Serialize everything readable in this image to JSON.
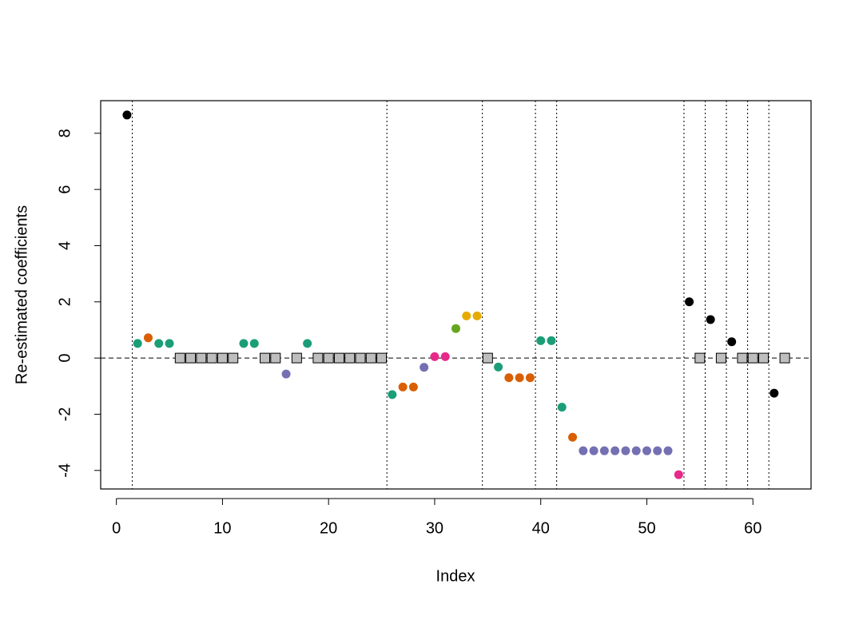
{
  "chart_data": {
    "type": "scatter",
    "xlabel": "Index",
    "ylabel": "Re-estimated coefficients",
    "x": [
      1,
      2,
      3,
      4,
      5,
      6,
      7,
      8,
      9,
      10,
      11,
      12,
      13,
      14,
      15,
      16,
      17,
      18,
      19,
      20,
      21,
      22,
      23,
      24,
      25,
      26,
      27,
      28,
      29,
      30,
      31,
      32,
      33,
      34,
      35,
      36,
      37,
      38,
      39,
      40,
      41,
      42,
      43,
      44,
      45,
      46,
      47,
      48,
      49,
      50,
      51,
      52,
      53,
      54,
      55,
      56,
      57,
      58,
      59,
      60,
      61,
      62,
      63
    ],
    "values": [
      8.65,
      0.52,
      0.72,
      0.52,
      0.52,
      0,
      0,
      0,
      0,
      0,
      0,
      0.52,
      0.52,
      0,
      0,
      -0.57,
      0,
      0.52,
      0,
      0,
      0,
      0,
      0,
      0,
      0,
      -1.3,
      -1.03,
      -1.03,
      -0.33,
      0.05,
      0.05,
      1.05,
      1.5,
      1.5,
      0,
      -0.32,
      -0.7,
      -0.7,
      -0.7,
      0.62,
      0.62,
      -1.75,
      -2.82,
      -3.3,
      -3.3,
      -3.3,
      -3.3,
      -3.3,
      -3.3,
      -3.3,
      -3.3,
      -3.3,
      -4.15,
      2.0,
      0,
      1.37,
      0,
      0.58,
      0,
      0,
      0,
      -1.25,
      0
    ],
    "colors": [
      "#000000",
      "#1b9e77",
      "#d95f02",
      "#1b9e77",
      "#1b9e77",
      "#bebebe",
      "#bebebe",
      "#bebebe",
      "#bebebe",
      "#bebebe",
      "#bebebe",
      "#1b9e77",
      "#1b9e77",
      "#bebebe",
      "#bebebe",
      "#7570b3",
      "#bebebe",
      "#1b9e77",
      "#bebebe",
      "#bebebe",
      "#bebebe",
      "#bebebe",
      "#bebebe",
      "#bebebe",
      "#bebebe",
      "#1b9e77",
      "#d95f02",
      "#d95f02",
      "#7570b3",
      "#e7298a",
      "#e7298a",
      "#66a61e",
      "#e6ab02",
      "#e6ab02",
      "#bebebe",
      "#1b9e77",
      "#d95f02",
      "#d95f02",
      "#d95f02",
      "#1b9e77",
      "#1b9e77",
      "#1b9e77",
      "#d95f02",
      "#7570b3",
      "#7570b3",
      "#7570b3",
      "#7570b3",
      "#7570b3",
      "#7570b3",
      "#7570b3",
      "#7570b3",
      "#7570b3",
      "#e7298a",
      "#000000",
      "#bebebe",
      "#000000",
      "#bebebe",
      "#000000",
      "#bebebe",
      "#bebebe",
      "#bebebe",
      "#000000",
      "#bebebe"
    ],
    "markers": [
      "circle",
      "circle",
      "circle",
      "circle",
      "circle",
      "square",
      "square",
      "square",
      "square",
      "square",
      "square",
      "circle",
      "circle",
      "square",
      "square",
      "circle",
      "square",
      "circle",
      "square",
      "square",
      "square",
      "square",
      "square",
      "square",
      "square",
      "circle",
      "circle",
      "circle",
      "circle",
      "circle",
      "circle",
      "circle",
      "circle",
      "circle",
      "square",
      "circle",
      "circle",
      "circle",
      "circle",
      "circle",
      "circle",
      "circle",
      "circle",
      "circle",
      "circle",
      "circle",
      "circle",
      "circle",
      "circle",
      "circle",
      "circle",
      "circle",
      "circle",
      "circle",
      "square",
      "circle",
      "square",
      "circle",
      "square",
      "square",
      "square",
      "circle",
      "square"
    ],
    "vlines": [
      1.5,
      25.5,
      34.5,
      39.5,
      41.5,
      53.5,
      55.5,
      57.5,
      59.5,
      61.5
    ],
    "hline": 0,
    "xlim": [
      -1.48,
      65.48
    ],
    "ylim": [
      -4.66,
      9.16
    ],
    "xticks": [
      0,
      10,
      20,
      30,
      40,
      50,
      60
    ],
    "yticks": [
      -4,
      -2,
      0,
      2,
      4,
      6,
      8
    ]
  }
}
